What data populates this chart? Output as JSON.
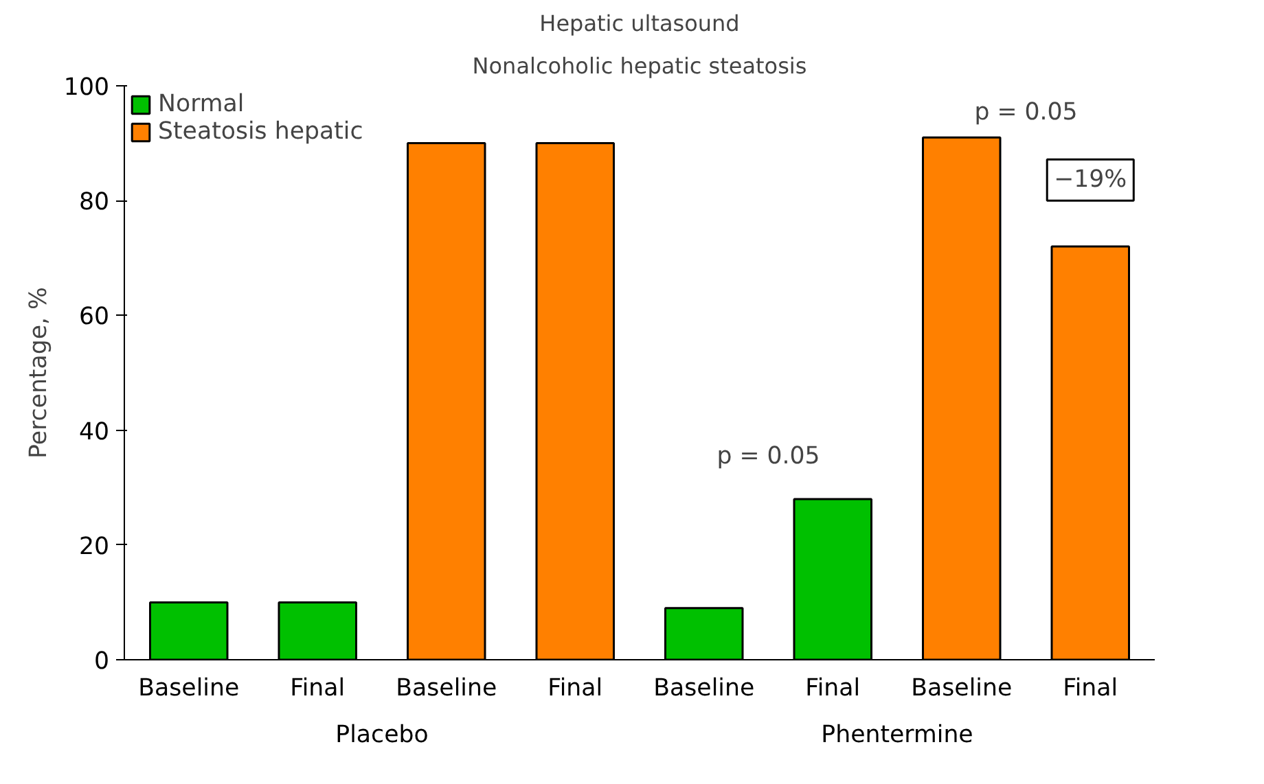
{
  "chart_data": {
    "type": "bar",
    "title": "Hepatic ultasound",
    "subtitle": "Nonalcoholic hepatic steatosis",
    "ylabel": "Percentage, %",
    "categories": [
      "Baseline",
      "Final",
      "Baseline",
      "Final",
      "Baseline",
      "Final",
      "Baseline",
      "Final"
    ],
    "series": [
      {
        "name": "Normal",
        "color": "#00c000",
        "values": [
          10,
          10,
          null,
          null,
          9,
          28,
          null,
          null
        ]
      },
      {
        "name": "Steatosis hepatic",
        "color": "#ff8000",
        "values": [
          null,
          null,
          90,
          90,
          null,
          null,
          91,
          72
        ]
      }
    ],
    "ylim": [
      0,
      100
    ],
    "yticks": [
      0,
      20,
      40,
      60,
      80,
      100
    ],
    "grid": false,
    "legend": "top left",
    "annotations": [
      "Placebo",
      "Phentermine",
      "p = 0.05",
      "p = 0.05",
      "−19%"
    ]
  }
}
